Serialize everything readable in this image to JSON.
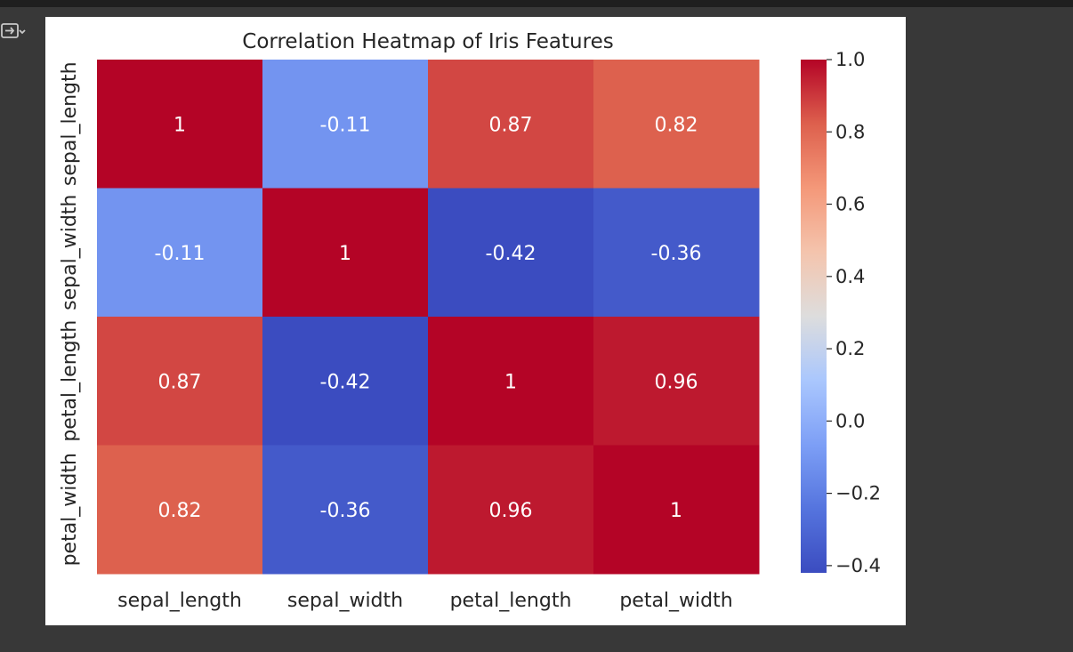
{
  "chart_data": {
    "type": "heatmap",
    "title": "Correlation Heatmap of Iris Features",
    "x_labels": [
      "sepal_length",
      "sepal_width",
      "petal_length",
      "petal_width"
    ],
    "y_labels": [
      "sepal_length",
      "sepal_width",
      "petal_length",
      "petal_width"
    ],
    "values": [
      [
        1,
        -0.11,
        0.87,
        0.82
      ],
      [
        -0.11,
        1,
        -0.42,
        -0.36
      ],
      [
        0.87,
        -0.42,
        1,
        0.96
      ],
      [
        0.82,
        -0.36,
        0.96,
        1
      ]
    ],
    "annotations": [
      [
        "1",
        "-0.11",
        "0.87",
        "0.82"
      ],
      [
        "-0.11",
        "1",
        "-0.42",
        "-0.36"
      ],
      [
        "0.87",
        "-0.42",
        "1",
        "0.96"
      ],
      [
        "0.82",
        "-0.36",
        "0.96",
        "1"
      ]
    ],
    "colormap": "coolwarm",
    "vmin": -0.42,
    "vmax": 1.0,
    "colorbar": {
      "ticks": [
        1.0,
        0.8,
        0.6,
        0.4,
        0.2,
        0.0,
        -0.2,
        -0.4
      ],
      "tick_labels": [
        "1.0",
        "0.8",
        "0.6",
        "0.4",
        "0.2",
        "0.0",
        "−0.2",
        "−0.4"
      ],
      "placement": "right"
    }
  },
  "colors": {
    "page_background": "#383838",
    "figure_background": "#ffffff",
    "text": "#262626",
    "cell_text": "#ffffff"
  },
  "icons": {
    "output_toggle": "output-expand-icon"
  }
}
